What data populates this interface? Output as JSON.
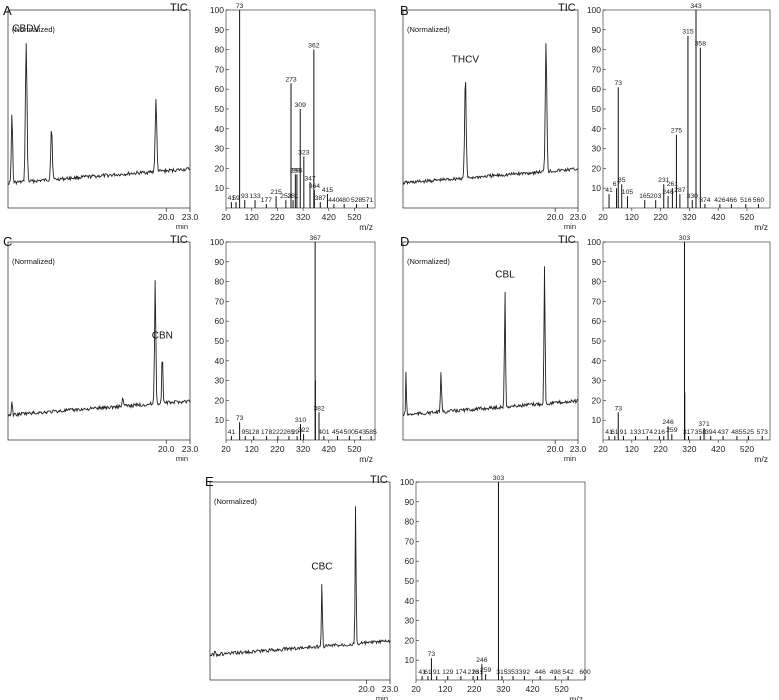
{
  "chart_data": [
    {
      "panel": "A",
      "type": "line",
      "chromatogram": {
        "tic_label": "TIC",
        "norm_label": "(Normalized)",
        "x_tick_labels": [
          "20.0",
          "23.0"
        ],
        "x_unit": "min",
        "peak_label": "CBDV",
        "xlim": [
          0,
          23
        ],
        "peaks": [
          {
            "t": 0.5,
            "h": 0.5,
            "w": 0.08
          },
          {
            "t": 2.3,
            "h": 1.0,
            "w": 0.1,
            "label": true
          },
          {
            "t": 5.5,
            "h": 0.38,
            "w": 0.1
          },
          {
            "t": 18.7,
            "h": 0.52,
            "w": 0.1
          }
        ]
      },
      "mass_spectrum": {
        "type": "bar",
        "x_tick_labels": [
          "20",
          "120",
          "220",
          "320",
          "420",
          "520"
        ],
        "y_tick_labels": [
          "10",
          "20",
          "30",
          "40",
          "50",
          "60",
          "70",
          "80",
          "90",
          "100"
        ],
        "x_unit": "m/z",
        "xlim": [
          20,
          600
        ],
        "ylim": [
          0,
          100
        ],
        "bars": [
          {
            "mz": 41,
            "y": 3,
            "label": "41"
          },
          {
            "mz": 59,
            "y": 3,
            "label": "59"
          },
          {
            "mz": 73,
            "y": 100,
            "label": "73"
          },
          {
            "mz": 93,
            "y": 4,
            "label": "93"
          },
          {
            "mz": 133,
            "y": 4,
            "label": "133"
          },
          {
            "mz": 177,
            "y": 2,
            "label": "177"
          },
          {
            "mz": 215,
            "y": 6,
            "label": "215"
          },
          {
            "mz": 253,
            "y": 4,
            "label": "253"
          },
          {
            "mz": 273,
            "y": 63,
            "label": "273"
          },
          {
            "mz": 281,
            "y": 4,
            "label": "281"
          },
          {
            "mz": 290,
            "y": 17,
            "label": "290"
          },
          {
            "mz": 296,
            "y": 17,
            "label": "296"
          },
          {
            "mz": 309,
            "y": 50,
            "label": "309"
          },
          {
            "mz": 323,
            "y": 26,
            "label": "323"
          },
          {
            "mz": 347,
            "y": 13,
            "label": "347"
          },
          {
            "mz": 362,
            "y": 80,
            "label": "362"
          },
          {
            "mz": 364,
            "y": 9,
            "label": "364"
          },
          {
            "mz": 387,
            "y": 3,
            "label": "387"
          },
          {
            "mz": 415,
            "y": 7,
            "label": "415"
          },
          {
            "mz": 440,
            "y": 2,
            "label": "440"
          },
          {
            "mz": 480,
            "y": 2,
            "label": "480"
          },
          {
            "mz": 528,
            "y": 2,
            "label": "528"
          },
          {
            "mz": 571,
            "y": 2,
            "label": "571"
          }
        ]
      }
    },
    {
      "panel": "B",
      "type": "line",
      "chromatogram": {
        "tic_label": "TIC",
        "norm_label": "(Normalized)",
        "x_tick_labels": [
          "20.0",
          "23.0"
        ],
        "x_unit": "min",
        "peak_label": "THCV",
        "xlim": [
          0,
          23
        ],
        "peaks": [
          {
            "t": 8.2,
            "h": 0.75,
            "w": 0.1,
            "label": true
          },
          {
            "t": 18.8,
            "h": 0.95,
            "w": 0.1
          }
        ]
      },
      "mass_spectrum": {
        "type": "bar",
        "x_tick_labels": [
          "20",
          "120",
          "220",
          "320",
          "420",
          "520"
        ],
        "y_tick_labels": [
          "10",
          "20",
          "30",
          "40",
          "50",
          "60",
          "70",
          "80",
          "90",
          "100"
        ],
        "x_unit": "m/z",
        "xlim": [
          20,
          600
        ],
        "ylim": [
          0,
          100
        ],
        "bars": [
          {
            "mz": 41,
            "y": 7,
            "label": "41"
          },
          {
            "mz": 67,
            "y": 10,
            "label": "67"
          },
          {
            "mz": 73,
            "y": 61,
            "label": "73"
          },
          {
            "mz": 85,
            "y": 12,
            "label": "85"
          },
          {
            "mz": 105,
            "y": 6,
            "label": "105"
          },
          {
            "mz": 165,
            "y": 4,
            "label": "165"
          },
          {
            "mz": 203,
            "y": 4,
            "label": "203"
          },
          {
            "mz": 231,
            "y": 12,
            "label": "231"
          },
          {
            "mz": 246,
            "y": 6,
            "label": "246"
          },
          {
            "mz": 261,
            "y": 10,
            "label": "261"
          },
          {
            "mz": 275,
            "y": 37,
            "label": "275"
          },
          {
            "mz": 287,
            "y": 7,
            "label": "287"
          },
          {
            "mz": 315,
            "y": 87,
            "label": "315"
          },
          {
            "mz": 330,
            "y": 4,
            "label": "330"
          },
          {
            "mz": 343,
            "y": 100,
            "label": "343"
          },
          {
            "mz": 358,
            "y": 81,
            "label": "358"
          },
          {
            "mz": 374,
            "y": 2,
            "label": "374"
          },
          {
            "mz": 426,
            "y": 2,
            "label": "426"
          },
          {
            "mz": 466,
            "y": 2,
            "label": "466"
          },
          {
            "mz": 516,
            "y": 2,
            "label": "516"
          },
          {
            "mz": 560,
            "y": 2,
            "label": "560"
          }
        ]
      }
    },
    {
      "panel": "C",
      "type": "line",
      "chromatogram": {
        "tic_label": "TIC",
        "norm_label": "(Normalized)",
        "x_tick_labels": [
          "20.0",
          "23.0"
        ],
        "x_unit": "min",
        "peak_label": "CBN",
        "xlim": [
          0,
          23
        ],
        "peaks": [
          {
            "t": 0.5,
            "h": 0.09,
            "w": 0.06
          },
          {
            "t": 14.5,
            "h": 0.06,
            "w": 0.08
          },
          {
            "t": 18.6,
            "h": 0.9,
            "w": 0.08
          },
          {
            "t": 19.5,
            "h": 0.38,
            "w": 0.07,
            "label": true
          }
        ]
      },
      "mass_spectrum": {
        "type": "bar",
        "x_tick_labels": [
          "20",
          "120",
          "220",
          "320",
          "420",
          "520"
        ],
        "y_tick_labels": [
          "10",
          "20",
          "30",
          "40",
          "50",
          "60",
          "70",
          "80",
          "90",
          "100"
        ],
        "x_unit": "m/z",
        "xlim": [
          20,
          600
        ],
        "ylim": [
          0,
          100
        ],
        "bars": [
          {
            "mz": 41,
            "y": 2,
            "label": "41"
          },
          {
            "mz": 73,
            "y": 9,
            "label": "73"
          },
          {
            "mz": 95,
            "y": 2,
            "label": "95"
          },
          {
            "mz": 128,
            "y": 2,
            "label": "128"
          },
          {
            "mz": 178,
            "y": 2,
            "label": "178"
          },
          {
            "mz": 222,
            "y": 2,
            "label": "222"
          },
          {
            "mz": 265,
            "y": 2,
            "label": "265"
          },
          {
            "mz": 297,
            "y": 2,
            "label": "297"
          },
          {
            "mz": 310,
            "y": 8,
            "label": "310"
          },
          {
            "mz": 322,
            "y": 3,
            "label": "322"
          },
          {
            "mz": 367,
            "y": 100,
            "label": "367"
          },
          {
            "mz": 368,
            "y": 30,
            "label": ""
          },
          {
            "mz": 382,
            "y": 14,
            "label": "382"
          },
          {
            "mz": 401,
            "y": 2,
            "label": "401"
          },
          {
            "mz": 454,
            "y": 2,
            "label": "454"
          },
          {
            "mz": 500,
            "y": 2,
            "label": "500"
          },
          {
            "mz": 543,
            "y": 2,
            "label": "543"
          },
          {
            "mz": 585,
            "y": 2,
            "label": "585"
          }
        ]
      }
    },
    {
      "panel": "D",
      "type": "line",
      "chromatogram": {
        "tic_label": "TIC",
        "norm_label": "(Normalized)",
        "x_tick_labels": [
          "20.0",
          "23.0"
        ],
        "x_unit": "min",
        "peak_label": "CBL",
        "xlim": [
          0,
          23
        ],
        "peaks": [
          {
            "t": 0.4,
            "h": 0.34,
            "w": 0.05
          },
          {
            "t": 5.0,
            "h": 0.3,
            "w": 0.07
          },
          {
            "t": 13.4,
            "h": 0.85,
            "w": 0.07,
            "label": true
          },
          {
            "t": 18.6,
            "h": 1.0,
            "w": 0.07
          }
        ]
      },
      "mass_spectrum": {
        "type": "bar",
        "x_tick_labels": [
          "20",
          "120",
          "220",
          "320",
          "420",
          "520"
        ],
        "y_tick_labels": [
          "10",
          "20",
          "30",
          "40",
          "50",
          "60",
          "70",
          "80",
          "90",
          "100"
        ],
        "x_unit": "m/z",
        "xlim": [
          20,
          600
        ],
        "ylim": [
          0,
          100
        ],
        "bars": [
          {
            "mz": 41,
            "y": 2,
            "label": "41"
          },
          {
            "mz": 61,
            "y": 2,
            "label": "61"
          },
          {
            "mz": 73,
            "y": 14,
            "label": "73"
          },
          {
            "mz": 91,
            "y": 2,
            "label": "91"
          },
          {
            "mz": 133,
            "y": 2,
            "label": "133"
          },
          {
            "mz": 174,
            "y": 2,
            "label": "174"
          },
          {
            "mz": 216,
            "y": 2,
            "label": "216"
          },
          {
            "mz": 231,
            "y": 2,
            "label": ""
          },
          {
            "mz": 246,
            "y": 7,
            "label": "246"
          },
          {
            "mz": 259,
            "y": 3,
            "label": "259"
          },
          {
            "mz": 303,
            "y": 100,
            "label": "303"
          },
          {
            "mz": 304,
            "y": 24,
            "label": ""
          },
          {
            "mz": 317,
            "y": 2,
            "label": "317"
          },
          {
            "mz": 358,
            "y": 2,
            "label": "358"
          },
          {
            "mz": 371,
            "y": 6,
            "label": "371"
          },
          {
            "mz": 394,
            "y": 2,
            "label": "394"
          },
          {
            "mz": 437,
            "y": 2,
            "label": "437"
          },
          {
            "mz": 485,
            "y": 2,
            "label": "485"
          },
          {
            "mz": 525,
            "y": 2,
            "label": "525"
          },
          {
            "mz": 573,
            "y": 2,
            "label": "573"
          }
        ]
      }
    },
    {
      "panel": "E",
      "type": "line",
      "chromatogram": {
        "tic_label": "TIC",
        "norm_label": "(Normalized)",
        "x_tick_labels": [
          "20.0",
          "23.0"
        ],
        "x_unit": "min",
        "peak_label": "CBC",
        "xlim": [
          0,
          23
        ],
        "peaks": [
          {
            "t": 0.6,
            "h": 0.04,
            "w": 0.06
          },
          {
            "t": 14.3,
            "h": 0.47,
            "w": 0.06,
            "label": true
          },
          {
            "t": 18.6,
            "h": 1.0,
            "w": 0.06
          }
        ]
      },
      "mass_spectrum": {
        "type": "bar",
        "x_tick_labels": [
          "20",
          "120",
          "220",
          "320",
          "420",
          "520"
        ],
        "y_tick_labels": [
          "10",
          "20",
          "30",
          "40",
          "50",
          "60",
          "70",
          "80",
          "90",
          "100"
        ],
        "x_unit": "m/z",
        "xlim": [
          20,
          600
        ],
        "ylim": [
          0,
          100
        ],
        "bars": [
          {
            "mz": 41,
            "y": 2,
            "label": "41"
          },
          {
            "mz": 61,
            "y": 2,
            "label": "61"
          },
          {
            "mz": 73,
            "y": 11,
            "label": "73"
          },
          {
            "mz": 91,
            "y": 2,
            "label": "91"
          },
          {
            "mz": 129,
            "y": 2,
            "label": "129"
          },
          {
            "mz": 174,
            "y": 2,
            "label": "174"
          },
          {
            "mz": 216,
            "y": 2,
            "label": "216"
          },
          {
            "mz": 231,
            "y": 2,
            "label": "231"
          },
          {
            "mz": 246,
            "y": 8,
            "label": "246"
          },
          {
            "mz": 259,
            "y": 3,
            "label": "259"
          },
          {
            "mz": 303,
            "y": 100,
            "label": "303"
          },
          {
            "mz": 315,
            "y": 2,
            "label": "315"
          },
          {
            "mz": 353,
            "y": 2,
            "label": "353"
          },
          {
            "mz": 392,
            "y": 2,
            "label": "392"
          },
          {
            "mz": 446,
            "y": 2,
            "label": "446"
          },
          {
            "mz": 498,
            "y": 2,
            "label": "498"
          },
          {
            "mz": 542,
            "y": 2,
            "label": "542"
          },
          {
            "mz": 600,
            "y": 2,
            "label": "600"
          }
        ]
      }
    }
  ]
}
